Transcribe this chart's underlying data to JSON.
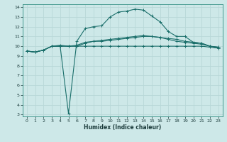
{
  "xlabel": "Humidex (Indice chaleur)",
  "background_color": "#cde8e8",
  "grid_color": "#b8d8d8",
  "line_color": "#1a6e6a",
  "xlim": [
    -0.5,
    23.5
  ],
  "ylim": [
    2.8,
    14.3
  ],
  "xticks": [
    0,
    1,
    2,
    3,
    4,
    5,
    6,
    7,
    8,
    9,
    10,
    11,
    12,
    13,
    14,
    15,
    16,
    17,
    18,
    19,
    20,
    21,
    22,
    23
  ],
  "yticks": [
    3,
    4,
    5,
    6,
    7,
    8,
    9,
    10,
    11,
    12,
    13,
    14
  ],
  "line1_x": [
    0,
    1,
    2,
    3,
    4,
    5,
    6,
    7,
    8,
    9,
    10,
    11,
    12,
    13,
    14,
    15,
    16,
    17,
    18,
    19,
    20,
    21,
    22,
    23
  ],
  "line1_y": [
    9.5,
    9.4,
    9.6,
    10.0,
    10.0,
    10.0,
    10.0,
    10.0,
    10.0,
    10.0,
    10.0,
    10.0,
    10.0,
    10.0,
    10.0,
    10.0,
    10.0,
    10.0,
    10.0,
    10.0,
    10.0,
    10.0,
    9.9,
    9.8
  ],
  "line2_x": [
    0,
    1,
    2,
    3,
    4,
    5,
    6,
    7,
    8,
    9,
    10,
    11,
    12,
    13,
    14,
    15,
    16,
    17,
    18,
    19,
    20,
    21,
    22,
    23
  ],
  "line2_y": [
    9.5,
    9.4,
    9.6,
    10.0,
    10.0,
    3.1,
    10.5,
    11.8,
    12.0,
    12.1,
    13.0,
    13.5,
    13.6,
    13.8,
    13.7,
    13.1,
    12.5,
    11.5,
    11.0,
    11.0,
    10.4,
    10.3,
    10.0,
    9.8
  ],
  "line3_x": [
    0,
    1,
    2,
    3,
    4,
    5,
    6,
    7,
    8,
    9,
    10,
    11,
    12,
    13,
    14,
    15,
    16,
    17,
    18,
    19,
    20,
    21,
    22,
    23
  ],
  "line3_y": [
    9.5,
    9.4,
    9.6,
    10.0,
    10.0,
    10.0,
    10.0,
    10.3,
    10.5,
    10.6,
    10.7,
    10.8,
    10.9,
    11.0,
    11.1,
    11.0,
    10.9,
    10.7,
    10.5,
    10.4,
    10.3,
    10.2,
    10.0,
    9.9
  ],
  "line4_x": [
    0,
    1,
    2,
    3,
    4,
    5,
    6,
    7,
    8,
    9,
    10,
    11,
    12,
    13,
    14,
    15,
    16,
    17,
    18,
    19,
    20,
    21,
    22,
    23
  ],
  "line4_y": [
    9.5,
    9.4,
    9.6,
    10.0,
    10.1,
    10.0,
    10.1,
    10.4,
    10.5,
    10.5,
    10.6,
    10.7,
    10.8,
    10.9,
    11.0,
    11.0,
    10.9,
    10.8,
    10.7,
    10.5,
    10.4,
    10.3,
    10.0,
    9.9
  ]
}
